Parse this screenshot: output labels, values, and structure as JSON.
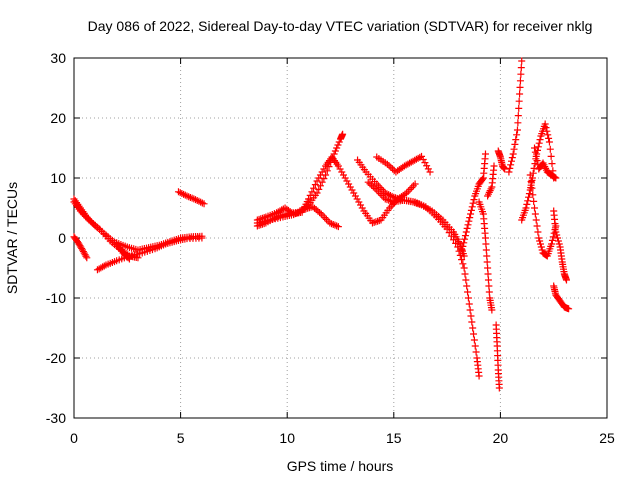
{
  "chart_data": {
    "type": "scatter",
    "title": "Day 086 of 2022, Sidereal Day-to-day VTEC variation (SDTVAR) for receiver nklg",
    "xlabel": "GPS time / hours",
    "ylabel": "SDTVAR / TECUs",
    "xlim": [
      0,
      25
    ],
    "ylim": [
      -30,
      30
    ],
    "xticks": [
      0,
      5,
      10,
      15,
      20,
      25
    ],
    "yticks": [
      -30,
      -20,
      -10,
      0,
      10,
      20,
      30
    ],
    "xtick_labels": [
      "0",
      "5",
      "10",
      "15",
      "20",
      "25"
    ],
    "ytick_labels": [
      "-30",
      "-20",
      "-10",
      "0",
      "10",
      "20",
      "30"
    ],
    "grid": true,
    "marker": "+",
    "series": [
      {
        "name": "SDTVAR",
        "color": "#ff0000",
        "segments": [
          [
            [
              0.0,
              6.5
            ],
            [
              0.3,
              5.0
            ],
            [
              0.6,
              3.5
            ],
            [
              1.0,
              2.0
            ],
            [
              1.5,
              0.5
            ],
            [
              2.0,
              -1.0
            ],
            [
              2.3,
              -2.5
            ],
            [
              2.6,
              -3.5
            ]
          ],
          [
            [
              0.0,
              0.2
            ],
            [
              0.2,
              -0.8
            ],
            [
              0.4,
              -2.0
            ],
            [
              0.6,
              -3.3
            ]
          ],
          [
            [
              0.0,
              6.0
            ],
            [
              0.3,
              4.5
            ],
            [
              0.7,
              3.0
            ],
            [
              1.2,
              1.5
            ],
            [
              1.7,
              -0.5
            ],
            [
              2.2,
              -2.0
            ],
            [
              2.6,
              -3.0
            ],
            [
              3.0,
              -3.3
            ]
          ],
          [
            [
              1.1,
              -5.3
            ],
            [
              1.5,
              -4.5
            ],
            [
              2.0,
              -3.8
            ],
            [
              2.6,
              -3.0
            ],
            [
              3.2,
              -2.5
            ],
            [
              3.8,
              -1.8
            ],
            [
              4.3,
              -1.0
            ],
            [
              4.8,
              -0.5
            ],
            [
              5.3,
              -0.1
            ],
            [
              6.0,
              0.0
            ]
          ],
          [
            [
              2.0,
              -0.8
            ],
            [
              2.5,
              -1.5
            ],
            [
              3.0,
              -2.0
            ],
            [
              3.5,
              -1.6
            ],
            [
              4.0,
              -1.2
            ],
            [
              4.5,
              -0.6
            ],
            [
              5.0,
              0.0
            ],
            [
              5.5,
              0.2
            ],
            [
              6.0,
              0.3
            ]
          ],
          [
            [
              4.9,
              7.7
            ],
            [
              5.3,
              7.0
            ],
            [
              5.7,
              6.4
            ],
            [
              6.1,
              5.7
            ]
          ],
          [
            [
              8.6,
              2.0
            ],
            [
              9.0,
              2.5
            ],
            [
              9.5,
              3.5
            ],
            [
              10.0,
              4.0
            ],
            [
              10.5,
              4.3
            ],
            [
              11.0,
              5.5
            ],
            [
              11.4,
              7.5
            ],
            [
              11.8,
              10.5
            ],
            [
              12.2,
              14.0
            ],
            [
              12.5,
              16.5
            ],
            [
              12.6,
              17.3
            ]
          ],
          [
            [
              8.6,
              3.0
            ],
            [
              9.0,
              3.5
            ],
            [
              9.5,
              4.2
            ],
            [
              9.9,
              5.0
            ],
            [
              10.3,
              4.0
            ],
            [
              10.7,
              4.3
            ],
            [
              11.0,
              6.5
            ],
            [
              11.4,
              9.5
            ],
            [
              11.8,
              12.0
            ],
            [
              12.1,
              13.5
            ],
            [
              12.4,
              12.0
            ],
            [
              12.8,
              9.5
            ],
            [
              13.2,
              7.0
            ],
            [
              13.6,
              4.5
            ],
            [
              14.0,
              2.5
            ],
            [
              14.4,
              3.0
            ],
            [
              14.8,
              5.0
            ],
            [
              15.2,
              6.5
            ],
            [
              15.6,
              7.5
            ],
            [
              16.0,
              9.0
            ]
          ],
          [
            [
              8.6,
              2.5
            ],
            [
              9.2,
              3.0
            ],
            [
              9.8,
              3.5
            ],
            [
              10.3,
              3.9
            ],
            [
              10.8,
              4.8
            ],
            [
              11.2,
              5.2
            ],
            [
              11.6,
              4.0
            ],
            [
              12.0,
              2.5
            ],
            [
              12.4,
              1.9
            ]
          ],
          [
            [
              13.3,
              13.0
            ],
            [
              13.7,
              11.0
            ],
            [
              14.2,
              9.0
            ],
            [
              14.6,
              7.5
            ],
            [
              15.0,
              6.8
            ],
            [
              15.4,
              6.3
            ],
            [
              15.9,
              6.0
            ],
            [
              16.3,
              5.5
            ],
            [
              16.8,
              4.5
            ],
            [
              17.3,
              3.0
            ],
            [
              17.8,
              1.0
            ],
            [
              18.1,
              -1.0
            ],
            [
              18.3,
              -3.0
            ]
          ],
          [
            [
              14.2,
              13.5
            ],
            [
              14.7,
              12.3
            ],
            [
              15.1,
              11.0
            ],
            [
              15.5,
              12.0
            ],
            [
              15.9,
              12.8
            ],
            [
              16.3,
              13.6
            ],
            [
              16.7,
              11.0
            ]
          ],
          [
            [
              13.8,
              9.3
            ],
            [
              14.2,
              8.0
            ],
            [
              14.6,
              6.5
            ],
            [
              15.0,
              6.0
            ],
            [
              15.5,
              6.3
            ],
            [
              16.0,
              6.0
            ],
            [
              16.5,
              5.2
            ],
            [
              17.0,
              3.5
            ],
            [
              17.5,
              1.5
            ],
            [
              18.0,
              -1.5
            ],
            [
              18.3,
              -5.0
            ],
            [
              18.5,
              -10.0
            ],
            [
              18.7,
              -15.0
            ],
            [
              18.9,
              -20.0
            ],
            [
              19.0,
              -23.0
            ]
          ],
          [
            [
              18.2,
              -2.0
            ],
            [
              18.4,
              1.0
            ],
            [
              18.6,
              4.0
            ],
            [
              18.8,
              7.0
            ],
            [
              19.0,
              9.0
            ],
            [
              19.2,
              10.0
            ],
            [
              19.3,
              14.0
            ]
          ],
          [
            [
              19.0,
              6.0
            ],
            [
              19.2,
              4.0
            ],
            [
              19.3,
              0.0
            ],
            [
              19.4,
              -5.0
            ],
            [
              19.5,
              -10.0
            ],
            [
              19.6,
              -12.0
            ]
          ],
          [
            [
              19.4,
              7.0
            ],
            [
              19.6,
              8.5
            ],
            [
              19.7,
              12.0
            ]
          ],
          [
            [
              19.8,
              -14.5
            ],
            [
              19.85,
              -18.0
            ],
            [
              19.9,
              -22.0
            ],
            [
              19.95,
              -25.0
            ]
          ],
          [
            [
              19.9,
              14.5
            ],
            [
              20.0,
              13.5
            ],
            [
              20.1,
              12.0
            ],
            [
              20.2,
              11.5
            ]
          ],
          [
            [
              20.4,
              11.0
            ],
            [
              20.6,
              14.0
            ],
            [
              20.8,
              18.0
            ],
            [
              20.9,
              24.0
            ],
            [
              21.0,
              29.5
            ]
          ],
          [
            [
              21.0,
              3.0
            ],
            [
              21.2,
              5.0
            ],
            [
              21.4,
              8.0
            ],
            [
              21.5,
              10.0
            ],
            [
              21.7,
              14.0
            ],
            [
              21.9,
              17.0
            ],
            [
              22.1,
              19.0
            ],
            [
              22.3,
              16.0
            ],
            [
              22.5,
              10.0
            ]
          ],
          [
            [
              21.4,
              10.5
            ],
            [
              21.6,
              5.0
            ],
            [
              21.8,
              0.0
            ],
            [
              22.0,
              -2.5
            ],
            [
              22.2,
              -3.0
            ],
            [
              22.4,
              -1.0
            ],
            [
              22.6,
              2.0
            ]
          ],
          [
            [
              21.6,
              15.0
            ],
            [
              21.8,
              11.5
            ],
            [
              22.0,
              12.5
            ],
            [
              22.2,
              11.0
            ],
            [
              22.4,
              10.5
            ],
            [
              22.6,
              10.0
            ]
          ],
          [
            [
              22.5,
              4.5
            ],
            [
              22.6,
              1.0
            ],
            [
              22.8,
              -1.5
            ],
            [
              22.9,
              -4.0
            ],
            [
              23.0,
              -6.0
            ],
            [
              23.1,
              -7.0
            ]
          ],
          [
            [
              22.5,
              -8.0
            ],
            [
              22.6,
              -9.5
            ],
            [
              22.8,
              -10.5
            ],
            [
              23.0,
              -11.5
            ],
            [
              23.2,
              -11.8
            ]
          ]
        ]
      }
    ]
  }
}
